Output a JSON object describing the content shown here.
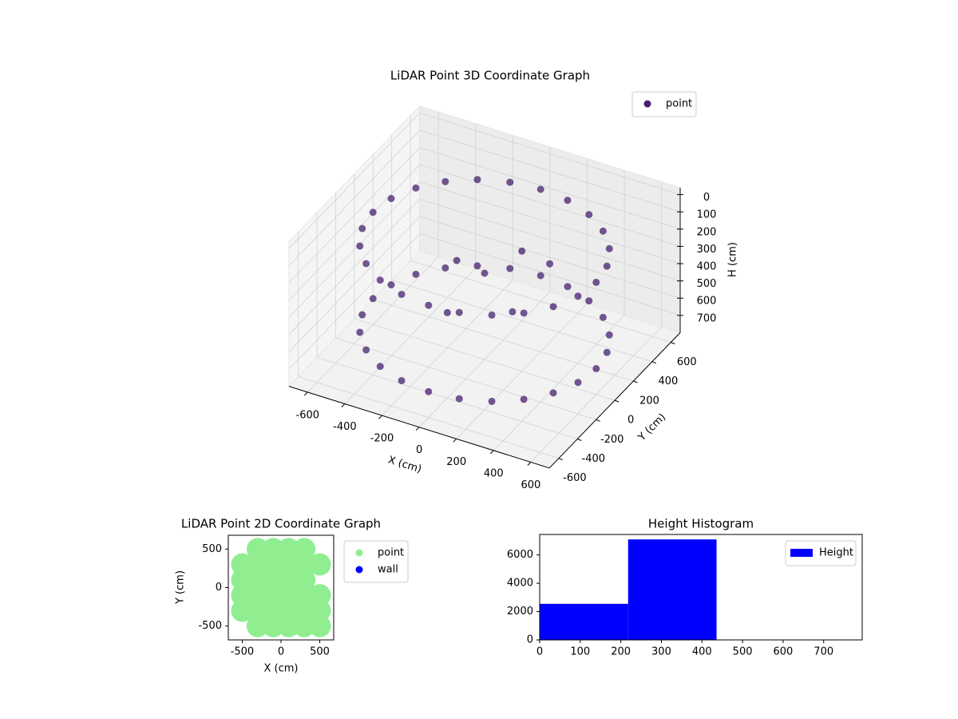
{
  "chart_data": [
    {
      "type": "scatter3d",
      "title": "LiDAR Point 3D Coordinate Graph",
      "x_label": "X (cm)",
      "y_label": "Y (cm)",
      "z_label": "H (cm)",
      "xlim": [
        -700,
        700
      ],
      "ylim": [
        -700,
        700
      ],
      "zlim": [
        -40,
        800
      ],
      "z_inverted": true,
      "xticks": [
        -600,
        -400,
        -200,
        0,
        200,
        400,
        600
      ],
      "yticks": [
        -600,
        -400,
        -200,
        0,
        200,
        400,
        600
      ],
      "zticks": [
        0,
        100,
        200,
        300,
        400,
        500,
        600,
        700
      ],
      "grid": true,
      "legend": "upper right",
      "series": [
        {
          "name": "point",
          "color": "#46206e",
          "x": [
            600,
            580,
            520,
            424,
            300,
            155,
            0,
            -155,
            -300,
            -424,
            -520,
            -580,
            -600,
            -580,
            -520,
            -424,
            -300,
            -155,
            0,
            155,
            300,
            424,
            520,
            580,
            600,
            580,
            520,
            424,
            300,
            155,
            0,
            -155,
            -300,
            -424,
            -520,
            -580,
            -600,
            -580,
            -520,
            -424,
            -300,
            -155,
            0,
            155,
            300,
            424,
            520,
            580,
            0,
            100,
            -200,
            200,
            -100,
            300
          ],
          "y": [
            0,
            155,
            300,
            424,
            520,
            580,
            600,
            580,
            520,
            424,
            300,
            155,
            0,
            -155,
            -300,
            -424,
            -520,
            -580,
            -600,
            -580,
            -520,
            -424,
            -300,
            -155,
            0,
            155,
            300,
            424,
            520,
            580,
            600,
            580,
            520,
            424,
            300,
            155,
            0,
            -155,
            -300,
            -424,
            -520,
            -580,
            -600,
            -580,
            -520,
            -424,
            -300,
            -155,
            0,
            200,
            100,
            -100,
            -200,
            100
          ],
          "z": [
            150,
            150,
            150,
            150,
            150,
            150,
            150,
            150,
            150,
            150,
            150,
            150,
            150,
            150,
            150,
            150,
            150,
            150,
            150,
            150,
            150,
            150,
            150,
            150,
            650,
            650,
            650,
            650,
            650,
            650,
            650,
            650,
            650,
            650,
            650,
            650,
            650,
            650,
            650,
            650,
            650,
            650,
            650,
            650,
            650,
            650,
            650,
            650,
            300,
            250,
            350,
            400,
            450,
            200
          ]
        }
      ]
    },
    {
      "type": "scatter",
      "title": "LiDAR Point 2D Coordinate Graph",
      "x_label": "X (cm)",
      "y_label": "Y (cm)",
      "xlim": [
        -680,
        680
      ],
      "ylim": [
        -680,
        680
      ],
      "xticks": [
        -500,
        0,
        500
      ],
      "yticks": [
        -500,
        0,
        500
      ],
      "legend": "outside right",
      "series": [
        {
          "name": "point",
          "color": "#90ee90",
          "x": [
            -300,
            -100,
            100,
            300,
            -500,
            -300,
            -100,
            100,
            300,
            500,
            -500,
            -300,
            -100,
            100,
            300,
            -500,
            -300,
            -100,
            100,
            300,
            500,
            -500,
            -300,
            -100,
            100,
            300,
            500,
            -300,
            -100,
            100,
            300,
            500
          ],
          "y": [
            500,
            500,
            500,
            500,
            300,
            300,
            300,
            300,
            300,
            300,
            100,
            100,
            100,
            100,
            100,
            -100,
            -100,
            -100,
            -100,
            -100,
            -100,
            -300,
            -300,
            -300,
            -300,
            -300,
            -300,
            -500,
            -500,
            -500,
            -500,
            -500
          ]
        },
        {
          "name": "wall",
          "color": "#0000ff",
          "x": [],
          "y": []
        }
      ]
    },
    {
      "type": "histogram",
      "title": "Height Histogram",
      "xlim": [
        0,
        795
      ],
      "ylim": [
        0,
        7450
      ],
      "xticks": [
        0,
        100,
        200,
        300,
        400,
        500,
        600,
        700
      ],
      "yticks": [
        0,
        2000,
        4000,
        6000
      ],
      "legend": "upper right",
      "bins": [
        0,
        218,
        436,
        795
      ],
      "series": [
        {
          "name": "Height",
          "color": "#0000ff",
          "values": [
            2550,
            7100,
            0
          ]
        }
      ]
    }
  ]
}
